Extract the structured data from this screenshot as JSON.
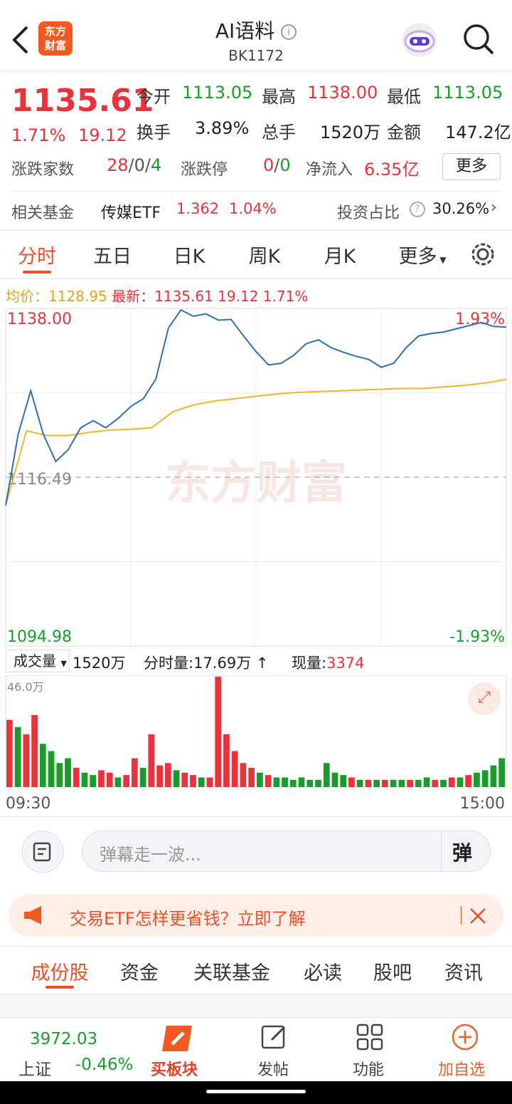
{
  "header": {
    "title": "AI语料",
    "code": "BK1172",
    "logo": [
      "东方",
      "财富"
    ]
  },
  "quote": {
    "price": "1135.61",
    "change_pct": "1.71%",
    "change": "19.12",
    "stats": [
      {
        "label": "今开",
        "value": "1113.05"
      },
      {
        "label": "最高",
        "value": "1138.00"
      },
      {
        "label": "最低",
        "value": "1113.05"
      },
      {
        "label": "换手",
        "value": "3.89%"
      },
      {
        "label": "总手",
        "value": "1520万"
      },
      {
        "label": "金额",
        "value": "147.2亿"
      }
    ],
    "breadth_label": "涨跌家数",
    "breadth": [
      "28",
      "/",
      "0",
      "/",
      "4"
    ],
    "limit_label": "涨跌停",
    "limit": [
      "0",
      "/",
      "0"
    ],
    "inflow_label": "净流入",
    "inflow": "6.35亿",
    "more": "更多"
  },
  "fund": {
    "label": "相关基金",
    "name": "传媒ETF",
    "price": "1.362",
    "pct": "1.04%",
    "ratio_label": "投资占比",
    "ratio": "30.26%"
  },
  "tabs": [
    "分时",
    "五日",
    "日K",
    "周K",
    "月K",
    "更多"
  ],
  "watermark": "东方财富",
  "chart_data": [
    {
      "type": "line",
      "legend_extra": [
        "19.12",
        "1.71%"
      ],
      "series": [
        {
          "name": "最新：",
          "color": "#2f6fb0",
          "values": [
            1112.9,
            1122,
            1127.5,
            1122,
            1118.5,
            1120,
            1122.8,
            1123.7,
            1122.8,
            1124,
            1125.5,
            1126.5,
            1129,
            1135.5,
            1137.8,
            1137,
            1137.3,
            1136.5,
            1136.6,
            1134.5,
            1132.5,
            1130.8,
            1131,
            1132,
            1133.5,
            1134,
            1133,
            1132.4,
            1131.9,
            1131.5,
            1130.5,
            1131,
            1133,
            1134.5,
            1134.8,
            1135,
            1135.4,
            1135.8,
            1136.2,
            1135.7,
            1135.61
          ]
        },
        {
          "name": "均价：",
          "color": "#f0b429",
          "values": [
            1112.9,
            1122.4,
            1121.8,
            1121.8,
            1122.2,
            1122.5,
            1122.6,
            1122.8,
            1124.8,
            1125.7,
            1126.2,
            1126.5,
            1126.8,
            1127.1,
            1127.3,
            1127.4,
            1127.5,
            1127.6,
            1127.7,
            1127.8,
            1127.8,
            1128,
            1128.2,
            1128.5,
            1128.95
          ]
        }
      ],
      "ylim": [
        1094.98,
        1138.0
      ],
      "yticks": [
        {
          "value": 1138.0,
          "label": "1138.00"
        },
        1116.49,
        1094.98
      ],
      "y2lim": [
        -1.93,
        1.93
      ],
      "y2ticks": [
        {
          "value": 1.93,
          "label": "1.93%"
        },
        {
          "value": -1.93,
          "label": "-1.93%"
        }
      ],
      "grid": true
    },
    {
      "type": "bar",
      "ylim": [
        0,
        46
      ],
      "yticks": [
        {
          "value": 46,
          "label": "46.0万"
        }
      ],
      "x_labels": [
        "09:30",
        "15:00"
      ],
      "values": [
        28,
        25,
        22,
        30,
        18,
        15,
        10,
        12,
        8,
        6,
        5,
        7,
        6,
        4,
        5,
        12,
        8,
        22,
        9,
        10,
        7,
        6,
        5,
        4,
        4,
        46,
        22,
        15,
        10,
        8,
        6,
        5,
        4,
        4,
        3,
        4,
        3,
        3,
        10,
        6,
        5,
        4,
        3,
        3,
        3,
        3,
        3,
        3,
        3,
        3,
        4,
        3,
        3,
        4,
        4,
        5,
        6,
        7,
        9,
        12
      ],
      "colors": [
        "#e8323c",
        "#1a9c2b",
        "#e8323c",
        "#e8323c",
        "#1a9c2b",
        "#1a9c2b",
        "#1a9c2b",
        "#1a9c2b",
        "#e8323c",
        "#1a9c2b",
        "#1a9c2b",
        "#e8323c",
        "#e8323c",
        "#1a9c2b",
        "#e8323c",
        "#e8323c",
        "#1a9c2b",
        "#e8323c",
        "#e8323c",
        "#e8323c",
        "#1a9c2b",
        "#e8323c",
        "#e8323c",
        "#1a9c2b",
        "#e8323c",
        "#e8323c",
        "#e8323c",
        "#e8323c",
        "#e8323c",
        "#e8323c",
        "#1a9c2b",
        "#e8323c",
        "#1a9c2b",
        "#1a9c2b",
        "#1a9c2b",
        "#1a9c2b",
        "#1a9c2b",
        "#1a9c2b",
        "#1a9c2b",
        "#1a9c2b",
        "#1a9c2b",
        "#e8323c",
        "#1a9c2b",
        "#e8323c",
        "#1a9c2b",
        "#e8323c",
        "#1a9c2b",
        "#1a9c2b",
        "#e8323c",
        "#1a9c2b",
        "#1a9c2b",
        "#e8323c",
        "#1a9c2b",
        "#e8323c",
        "#1a9c2b",
        "#e8323c",
        "#1a9c2b",
        "#1a9c2b",
        "#1a9c2b",
        "#1a9c2b"
      ]
    }
  ],
  "volume_bar": {
    "label": "成交量",
    "total": "1520万",
    "minute_label": "分时量:",
    "minute": "17.69万",
    "now_label": "现量:",
    "now": "3374"
  },
  "danmaku": {
    "placeholder": "弹幕走一波...",
    "button": "弹"
  },
  "banner": "交易ETF怎样更省钱？立即了解",
  "sub_tabs": [
    "成份股",
    "资金",
    "关联基金",
    "必读",
    "股吧",
    "资讯"
  ],
  "bottom": {
    "index_value": "3972.03",
    "index_name": "上证",
    "index_pct": "-0.46%",
    "items": [
      "买板块",
      "发帖",
      "功能",
      "加自选"
    ]
  }
}
